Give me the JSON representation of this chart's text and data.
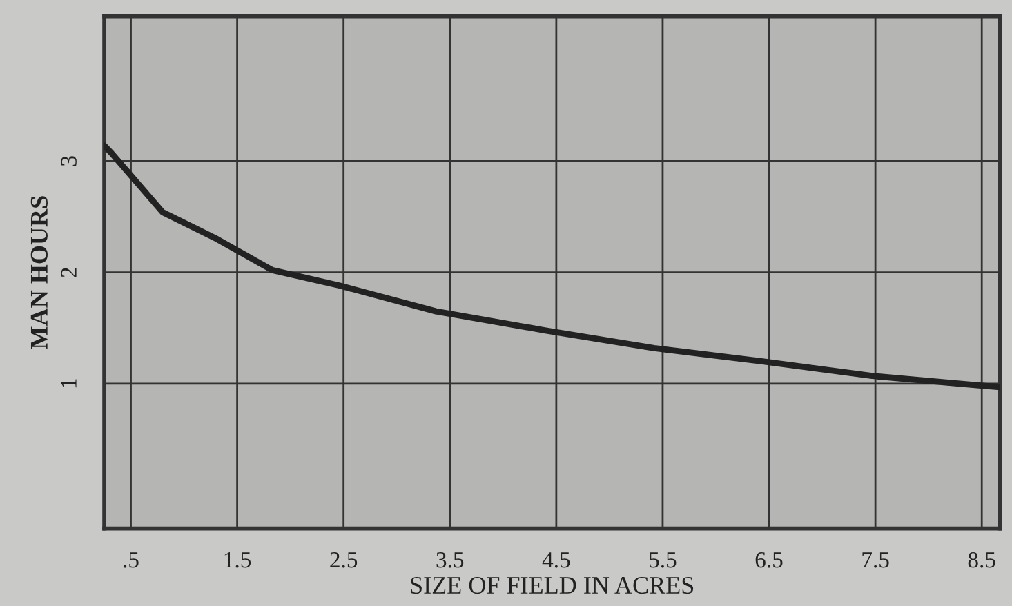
{
  "chart_data": {
    "type": "line",
    "xlabel": "SIZE OF FIELD IN ACRES",
    "ylabel": "MAN HOURS",
    "x": [
      0.25,
      0.32,
      0.8,
      1.31,
      1.83,
      2.47,
      3.37,
      4.39,
      5.42,
      6.44,
      7.47,
      8.53,
      8.67
    ],
    "series": [
      {
        "color": "#222222",
        "values": [
          3.14,
          3.07,
          2.54,
          2.3,
          2.02,
          1.88,
          1.65,
          1.48,
          1.32,
          1.2,
          1.07,
          0.98,
          0.97
        ]
      }
    ],
    "xlim": [
      0.25,
      8.67
    ],
    "ylim": [
      -0.3,
      4.3
    ],
    "xticks": [
      {
        "value": 0.5,
        "label": ".5"
      },
      1.5,
      2.5,
      3.5,
      4.5,
      5.5,
      6.5,
      7.5,
      8.5
    ],
    "yticks": [
      1,
      2,
      3
    ],
    "grid": true,
    "marker": "none",
    "line_style": "solid"
  }
}
